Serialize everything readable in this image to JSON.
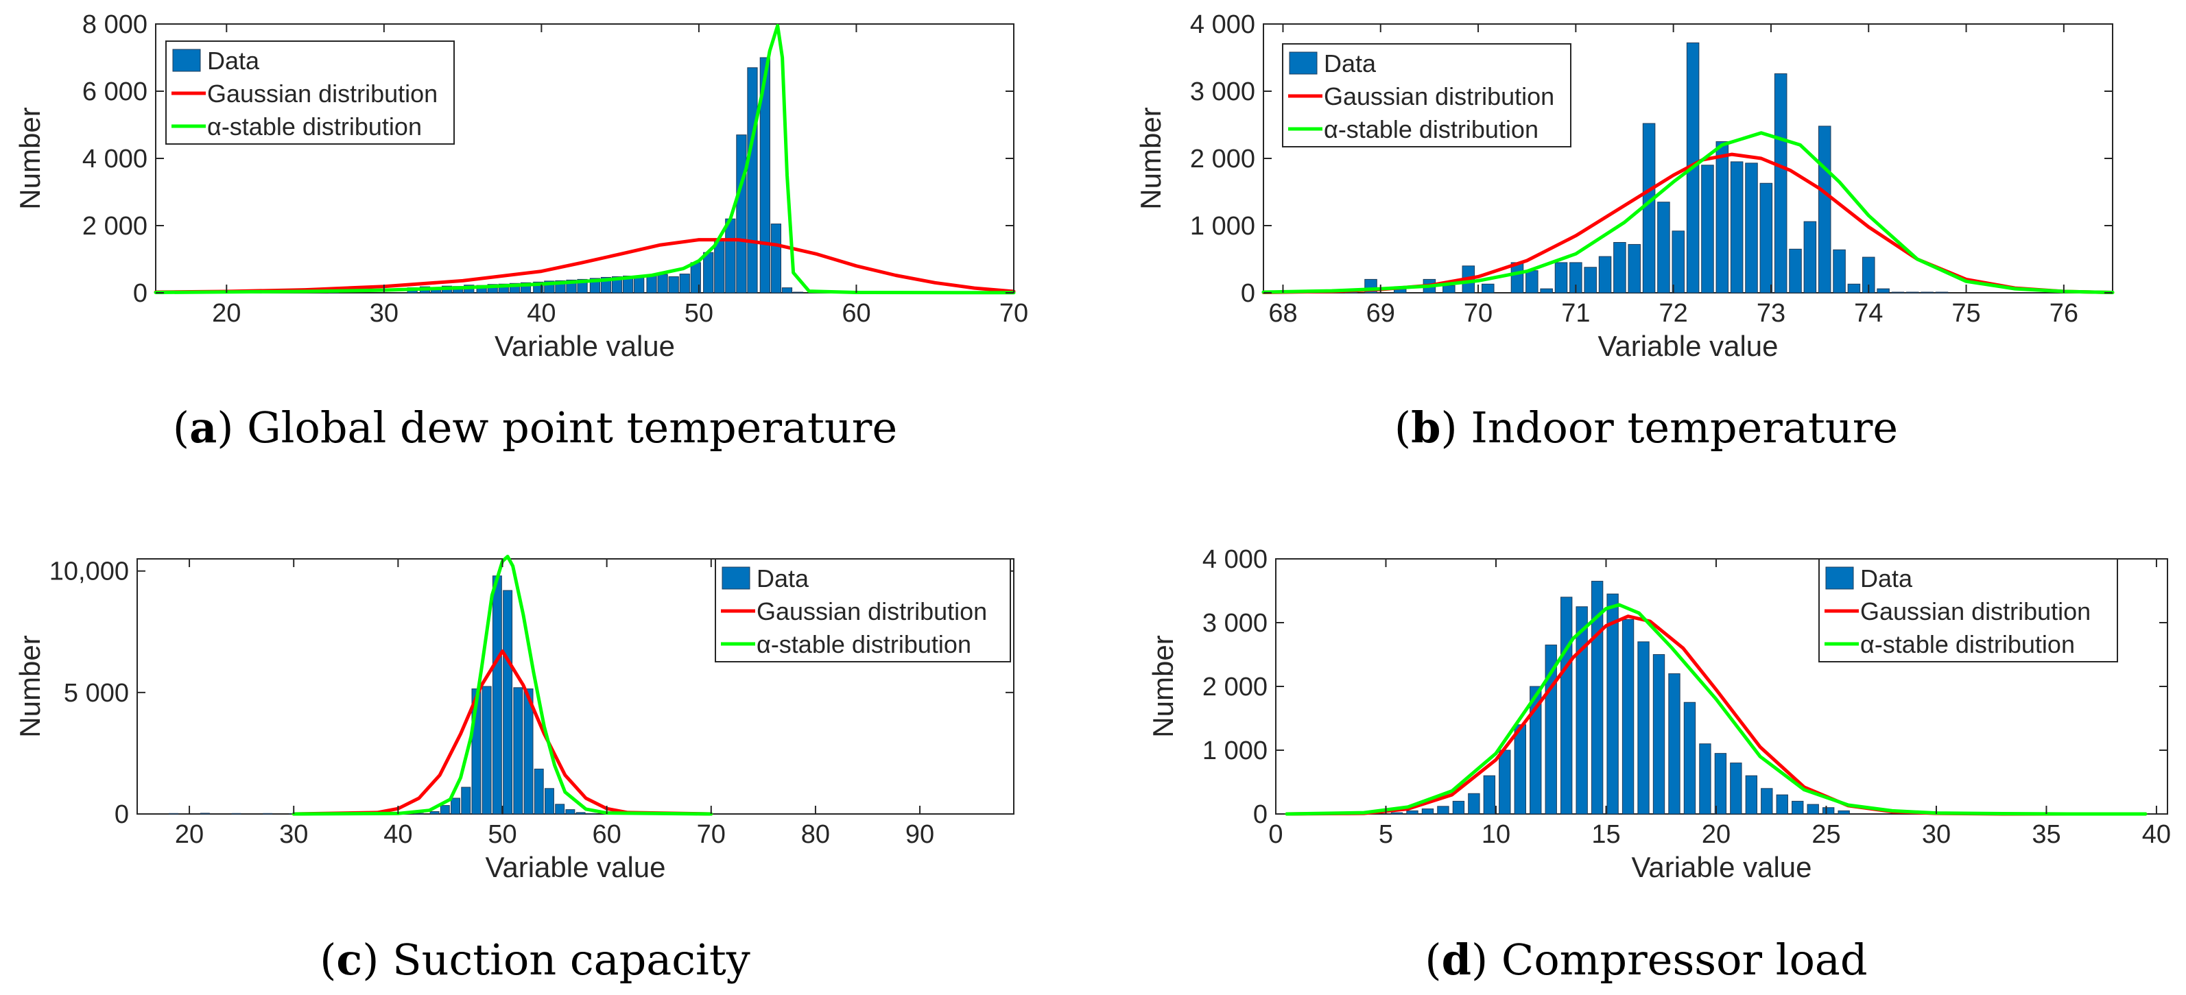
{
  "colors": {
    "data": "#0072BD",
    "gaussian": "#FF0000",
    "alpha": "#00FF00"
  },
  "chart_data": [
    {
      "type": "bar",
      "panel_letter": "a",
      "title": "Global dew point temperature",
      "xlabel": "Variable value",
      "ylabel": "Number",
      "xlim": [
        15.5,
        70
      ],
      "ylim": [
        0,
        8000
      ],
      "xticks": [
        20,
        30,
        40,
        50,
        60,
        70
      ],
      "xtick_labels": [
        "20",
        "30",
        "40",
        "50",
        "60",
        "70"
      ],
      "yticks": [
        0,
        2000,
        4000,
        6000,
        8000
      ],
      "ytick_labels": [
        "0",
        "2 000",
        "4 000",
        "6 000",
        "8 000"
      ],
      "legend_position": "top-left",
      "legend": [
        "Data",
        "Gaussian distribution",
        "α-stable distribution"
      ],
      "bin_width": 0.73,
      "bar_x": [
        16.0,
        20.5,
        26.8,
        31.8,
        32.6,
        33.3,
        34.0,
        34.7,
        35.4,
        36.2,
        36.9,
        37.6,
        38.3,
        39.0,
        39.8,
        40.5,
        41.2,
        41.9,
        42.6,
        43.4,
        44.1,
        44.8,
        45.5,
        46.2,
        47.0,
        47.7,
        48.4,
        49.1,
        49.8,
        50.6,
        51.3,
        52.0,
        52.7,
        53.4,
        54.2,
        54.9,
        55.6,
        56.3
      ],
      "bar_values": [
        20,
        40,
        120,
        150,
        180,
        160,
        200,
        190,
        230,
        220,
        250,
        260,
        280,
        300,
        320,
        350,
        360,
        380,
        400,
        430,
        460,
        480,
        500,
        470,
        520,
        550,
        480,
        560,
        900,
        1200,
        1600,
        2200,
        4700,
        6700,
        7000,
        2050,
        150,
        20
      ],
      "series": [
        {
          "name": "Gaussian distribution",
          "x": [
            15.5,
            20,
            25,
            30,
            35,
            40,
            42.5,
            45,
            47.5,
            50,
            52.5,
            55,
            57.5,
            60,
            62.5,
            65,
            67.5,
            70
          ],
          "values": [
            20,
            40,
            90,
            190,
            360,
            640,
            890,
            1150,
            1420,
            1580,
            1580,
            1420,
            1150,
            800,
            520,
            300,
            140,
            40
          ]
        },
        {
          "name": "α-stable distribution",
          "x": [
            15.5,
            25,
            30,
            35,
            40,
            44,
            47,
            49,
            50,
            51,
            52,
            53,
            54,
            54.5,
            55,
            55.3,
            55.6,
            56,
            57,
            60,
            70
          ],
          "values": [
            10,
            40,
            80,
            150,
            260,
            380,
            520,
            720,
            950,
            1400,
            2200,
            3700,
            5900,
            7200,
            7950,
            7000,
            3500,
            600,
            50,
            10,
            5
          ]
        }
      ]
    },
    {
      "type": "bar",
      "panel_letter": "b",
      "title": "Indoor temperature",
      "xlabel": "Variable value",
      "ylabel": "Number",
      "xlim": [
        67.8,
        76.5
      ],
      "ylim": [
        0,
        4000
      ],
      "xticks": [
        68,
        69,
        70,
        71,
        72,
        73,
        74,
        75,
        76
      ],
      "xtick_labels": [
        "68",
        "69",
        "70",
        "71",
        "72",
        "73",
        "74",
        "75",
        "76"
      ],
      "yticks": [
        0,
        1000,
        2000,
        3000,
        4000
      ],
      "ytick_labels": [
        "0",
        "1 000",
        "2 000",
        "3 000",
        "4 000"
      ],
      "legend_position": "top-left",
      "legend": [
        "Data",
        "Gaussian distribution",
        "α-stable distribution"
      ],
      "bin_width": 0.145,
      "bar_x": [
        68.1,
        68.7,
        68.9,
        69.2,
        69.5,
        69.7,
        69.9,
        70.1,
        70.4,
        70.55,
        70.7,
        70.85,
        71.0,
        71.15,
        71.3,
        71.45,
        71.6,
        71.75,
        71.9,
        72.05,
        72.2,
        72.35,
        72.5,
        72.65,
        72.8,
        72.95,
        73.1,
        73.25,
        73.4,
        73.55,
        73.7,
        73.85,
        74.0,
        74.15,
        74.3,
        74.45,
        74.6,
        74.75
      ],
      "bar_values": [
        10,
        30,
        200,
        60,
        200,
        110,
        400,
        130,
        450,
        330,
        60,
        450,
        450,
        380,
        540,
        750,
        720,
        2520,
        1350,
        920,
        3720,
        1900,
        2250,
        1950,
        1930,
        1630,
        3260,
        650,
        1060,
        2480,
        640,
        130,
        530,
        60,
        10,
        10,
        10,
        10
      ],
      "series": [
        {
          "name": "Gaussian distribution",
          "x": [
            67.8,
            68.5,
            69,
            69.5,
            70,
            70.5,
            71,
            71.5,
            72,
            72.3,
            72.6,
            72.9,
            73.2,
            73.5,
            74,
            74.5,
            75,
            75.5,
            76,
            76.5
          ],
          "values": [
            5,
            20,
            50,
            110,
            240,
            480,
            850,
            1300,
            1750,
            1980,
            2060,
            2000,
            1820,
            1550,
            980,
            500,
            200,
            70,
            20,
            5
          ]
        },
        {
          "name": "α-stable distribution",
          "x": [
            67.8,
            68.5,
            69,
            69.5,
            70,
            70.5,
            71,
            71.5,
            72,
            72.5,
            72.9,
            73.3,
            73.7,
            74,
            74.5,
            75,
            75.5,
            76,
            76.5
          ],
          "values": [
            10,
            30,
            60,
            100,
            180,
            320,
            580,
            1050,
            1650,
            2200,
            2380,
            2200,
            1650,
            1150,
            500,
            170,
            60,
            20,
            5
          ]
        }
      ]
    },
    {
      "type": "bar",
      "panel_letter": "c",
      "title": "Suction capacity",
      "xlabel": "Variable value",
      "ylabel": "Number",
      "xlim": [
        15,
        99
      ],
      "ylim": [
        0,
        10500
      ],
      "xticks": [
        20,
        30,
        40,
        50,
        60,
        70,
        80,
        90
      ],
      "xtick_labels": [
        "20",
        "30",
        "40",
        "50",
        "60",
        "70",
        "80",
        "90"
      ],
      "yticks": [
        0,
        5000,
        10000
      ],
      "ytick_labels": [
        "0",
        "5 000",
        "10,000"
      ],
      "legend_position": "top-right",
      "legend": [
        "Data",
        "Gaussian distribution",
        "α-stable distribution"
      ],
      "bin_width": 1.0,
      "bar_x": [
        18.5,
        21.5,
        24.5,
        27.5,
        30,
        33,
        36,
        39,
        42,
        43.5,
        44.5,
        45.5,
        46.5,
        47.5,
        48.5,
        49.5,
        50.5,
        51.5,
        52.5,
        53.5,
        54.5,
        55.5,
        56.5,
        57.5,
        58.5
      ],
      "bar_values": [
        20,
        30,
        20,
        20,
        10,
        10,
        10,
        10,
        30,
        100,
        350,
        650,
        1100,
        5150,
        5250,
        9800,
        9200,
        5200,
        5150,
        1850,
        1050,
        400,
        180,
        60,
        20
      ],
      "series": [
        {
          "name": "Gaussian distribution",
          "x": [
            30,
            38,
            40,
            42,
            44,
            46,
            48,
            50,
            52,
            54,
            56,
            58,
            60,
            62,
            70
          ],
          "values": [
            0,
            60,
            220,
            650,
            1600,
            3300,
            5300,
            6700,
            5300,
            3300,
            1600,
            650,
            220,
            60,
            0
          ]
        },
        {
          "name": "α-stable distribution",
          "x": [
            30,
            40,
            43,
            45,
            46,
            47,
            48,
            49,
            50,
            50.5,
            51,
            52,
            53,
            54,
            55,
            56,
            58,
            60,
            70
          ],
          "values": [
            0,
            20,
            150,
            600,
            1500,
            3200,
            6000,
            9000,
            10400,
            10600,
            10200,
            8200,
            5800,
            3600,
            2000,
            900,
            200,
            40,
            0
          ]
        }
      ]
    },
    {
      "type": "bar",
      "panel_letter": "d",
      "title": "Compressor load",
      "xlabel": "Variable value",
      "ylabel": "Number",
      "xlim": [
        0,
        40.5
      ],
      "ylim": [
        0,
        4000
      ],
      "xticks": [
        0,
        5,
        10,
        15,
        20,
        25,
        30,
        35,
        40
      ],
      "xtick_labels": [
        "0",
        "5",
        "10",
        "15",
        "20",
        "25",
        "30",
        "35",
        "40"
      ],
      "yticks": [
        0,
        1000,
        2000,
        3000,
        4000
      ],
      "ytick_labels": [
        "0",
        "1 000",
        "2 000",
        "3 000",
        "4 000"
      ],
      "legend_position": "top-right",
      "legend": [
        "Data",
        "Gaussian distribution",
        "α-stable distribution"
      ],
      "bin_width": 0.6,
      "bar_x": [
        5.5,
        6.2,
        6.9,
        7.6,
        8.3,
        9.0,
        9.7,
        10.4,
        11.1,
        11.8,
        12.5,
        13.2,
        13.9,
        14.6,
        15.3,
        16.0,
        16.7,
        17.4,
        18.1,
        18.8,
        19.5,
        20.2,
        20.9,
        21.6,
        22.3,
        23.0,
        23.7,
        24.4,
        25.1,
        25.8
      ],
      "bar_values": [
        20,
        50,
        80,
        120,
        200,
        320,
        600,
        1000,
        1400,
        2000,
        2650,
        3400,
        3250,
        3650,
        3450,
        3050,
        2700,
        2500,
        2200,
        1750,
        1100,
        950,
        800,
        600,
        400,
        300,
        200,
        150,
        100,
        50
      ],
      "series": [
        {
          "name": "Gaussian distribution",
          "x": [
            0.5,
            4,
            6,
            8,
            10,
            12,
            13.5,
            15,
            16,
            17,
            18.5,
            20,
            22,
            24,
            26,
            28,
            30,
            33,
            36,
            39.5
          ],
          "values": [
            0,
            10,
            80,
            300,
            850,
            1750,
            2450,
            2950,
            3100,
            3020,
            2600,
            1950,
            1050,
            420,
            130,
            35,
            10,
            0,
            0,
            0
          ]
        },
        {
          "name": "α-stable distribution",
          "x": [
            0.5,
            4,
            6,
            8,
            10,
            12,
            13.5,
            15,
            15.6,
            16.5,
            18,
            20,
            22,
            24,
            26,
            28,
            30,
            33,
            36,
            39.5
          ],
          "values": [
            0,
            20,
            110,
            360,
            950,
            1950,
            2750,
            3220,
            3280,
            3150,
            2600,
            1800,
            900,
            380,
            140,
            50,
            15,
            5,
            0,
            0
          ]
        }
      ]
    }
  ]
}
